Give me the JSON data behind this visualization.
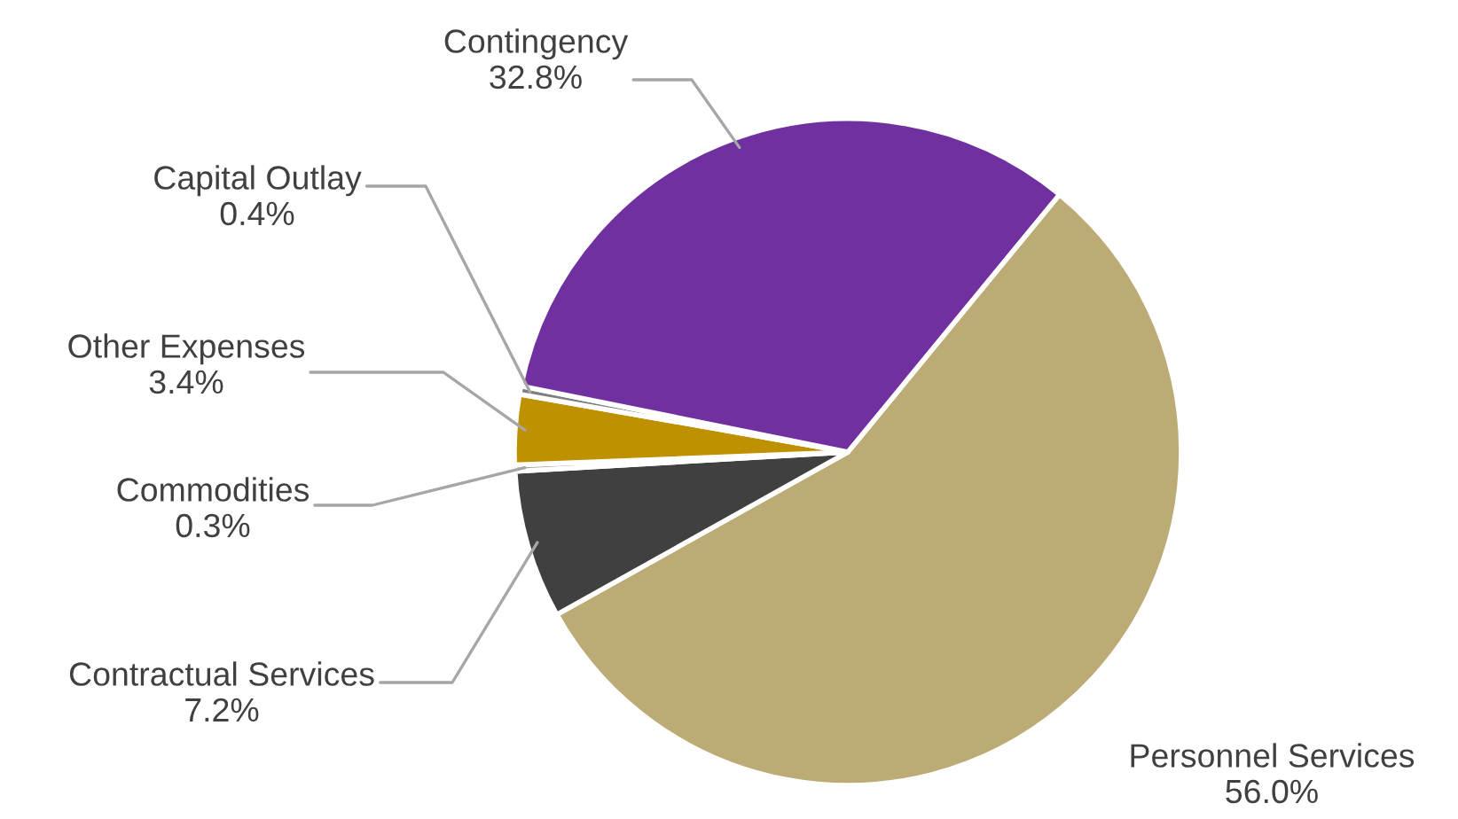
{
  "chart_data": {
    "type": "pie",
    "categories": [
      "Personnel Services",
      "Contractual Services",
      "Commodities",
      "Other Expenses",
      "Capital Outlay",
      "Contingency"
    ],
    "values": [
      56.0,
      7.2,
      0.3,
      3.4,
      0.4,
      32.8
    ],
    "value_labels": [
      "56.0%",
      "7.2%",
      "0.3%",
      "3.4%",
      "0.4%",
      "32.8%"
    ],
    "colors": [
      "#bcab74",
      "#404040",
      "#a5a5a5",
      "#bf9000",
      "#7f7f7f",
      "#7030a0"
    ]
  }
}
